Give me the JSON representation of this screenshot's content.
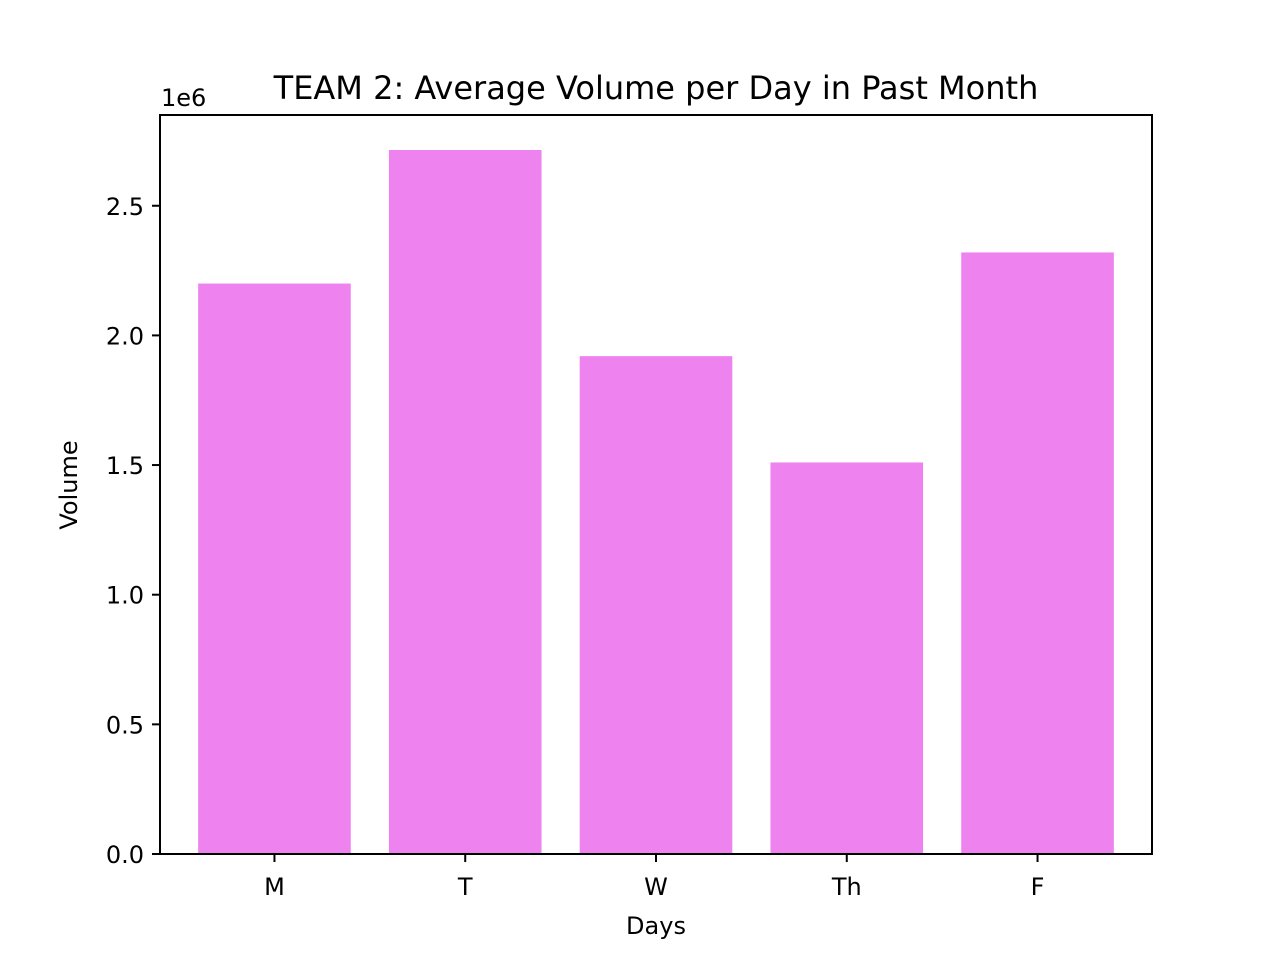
{
  "chart_data": {
    "type": "bar",
    "title": "TEAM 2: Average Volume per Day in Past Month",
    "xlabel": "Days",
    "ylabel": "Volume",
    "y_offset_label": "1e6",
    "categories": [
      "M",
      "T",
      "W",
      "Th",
      "F"
    ],
    "values": [
      2200000,
      2715000,
      1920000,
      1510000,
      2320000
    ],
    "ylim": [
      0,
      2850000
    ],
    "yticks": [
      0,
      500000,
      1000000,
      1500000,
      2000000,
      2500000
    ],
    "ytick_labels": [
      "0.0",
      "0.5",
      "1.0",
      "1.5",
      "2.0",
      "2.5"
    ],
    "bar_color": "#ee82ee",
    "grid": false,
    "legend": "none"
  }
}
